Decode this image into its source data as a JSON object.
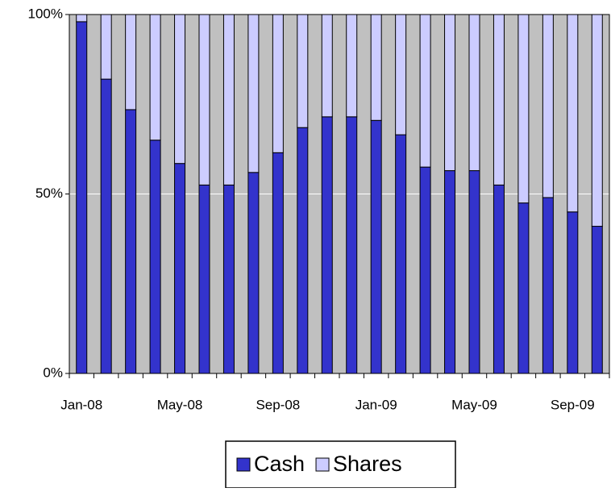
{
  "chart_data": {
    "type": "stacked_bar",
    "categories": [
      "Jan-08",
      null,
      null,
      null,
      "May-08",
      null,
      null,
      null,
      "Sep-08",
      null,
      null,
      null,
      "Jan-09",
      null,
      null,
      null,
      "May-09",
      null,
      null,
      null,
      "Sep-09",
      null
    ],
    "series": [
      {
        "name": "Cash",
        "color": "#3333cc",
        "values": [
          98,
          82,
          73.5,
          65,
          58.5,
          52.5,
          52.5,
          56,
          61.5,
          68.5,
          71.5,
          71.5,
          70.5,
          66.5,
          57.5,
          56.5,
          56.5,
          52.5,
          47.5,
          49,
          45,
          41
        ]
      },
      {
        "name": "Shares",
        "color": "#ccccff",
        "values": [
          2,
          18,
          26.5,
          35,
          41.5,
          47.5,
          47.5,
          44,
          38.5,
          31.5,
          28.5,
          28.5,
          29.5,
          33.5,
          42.5,
          43.5,
          43.5,
          47.5,
          52.5,
          51,
          55,
          59
        ]
      }
    ],
    "ylim": [
      0,
      100
    ],
    "yticks": [
      {
        "value": 0,
        "label": "0%"
      },
      {
        "value": 50,
        "label": "50%"
      },
      {
        "value": 100,
        "label": "100%"
      }
    ],
    "grid": true,
    "plot_background": "#c0c0c0",
    "legend": "bottom"
  }
}
